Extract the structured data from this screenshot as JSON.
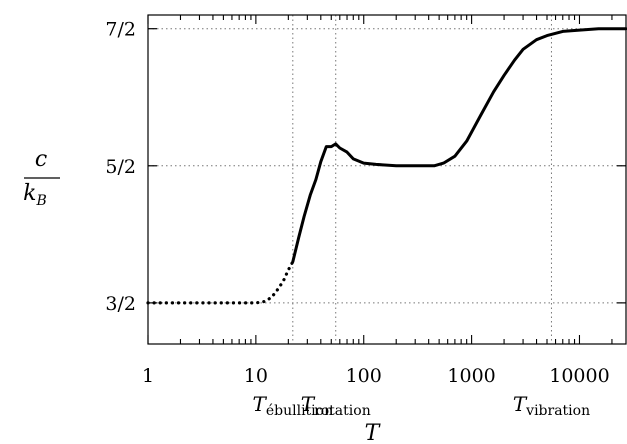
{
  "chart_data": {
    "type": "line",
    "xscale": "log",
    "xlim": [
      1,
      27000
    ],
    "ylim": [
      1.2,
      3.6
    ],
    "xticks": [
      {
        "value": 1,
        "label": "1"
      },
      {
        "value": 10,
        "label": "10"
      },
      {
        "value": 100,
        "label": "100"
      },
      {
        "value": 1000,
        "label": "1000"
      },
      {
        "value": 10000,
        "label": "10000"
      }
    ],
    "yticks": [
      {
        "value": 1.5,
        "label": "3/2"
      },
      {
        "value": 2.5,
        "label": "5/2"
      },
      {
        "value": 3.5,
        "label": "7/2"
      }
    ],
    "grid": "dotted",
    "ylabel": {
      "numerator": "c",
      "denominator_base": "k",
      "denominator_sub": "B"
    },
    "xlabel": "T",
    "vlines": [
      {
        "value": 22,
        "label_base": "T",
        "label_sub": "ébullition"
      },
      {
        "value": 55,
        "label_base": "T",
        "label_sub": "rotation"
      },
      {
        "value": 5500,
        "label_base": "T",
        "label_sub": "vibration"
      }
    ],
    "series": [
      {
        "style": "dotted",
        "x": [
          1,
          2,
          4,
          7,
          10,
          12,
          14,
          16,
          18,
          20,
          22
        ],
        "y": [
          1.5,
          1.5,
          1.5,
          1.5,
          1.5,
          1.51,
          1.54,
          1.6,
          1.66,
          1.74,
          1.8
        ]
      },
      {
        "style": "solid",
        "x": [
          22,
          25,
          28,
          32,
          36,
          40,
          45,
          50,
          55,
          60,
          70,
          80,
          100,
          130,
          200,
          300,
          450,
          550,
          700,
          900,
          1200,
          1600,
          2000,
          2500,
          3000,
          4000,
          5000,
          7000,
          10000,
          15000,
          20000,
          27000
        ],
        "y": [
          1.8,
          1.98,
          2.13,
          2.29,
          2.4,
          2.53,
          2.64,
          2.64,
          2.66,
          2.63,
          2.6,
          2.55,
          2.52,
          2.51,
          2.5,
          2.5,
          2.5,
          2.52,
          2.57,
          2.68,
          2.86,
          3.04,
          3.16,
          3.27,
          3.35,
          3.42,
          3.45,
          3.48,
          3.49,
          3.5,
          3.5,
          3.5
        ]
      }
    ]
  }
}
